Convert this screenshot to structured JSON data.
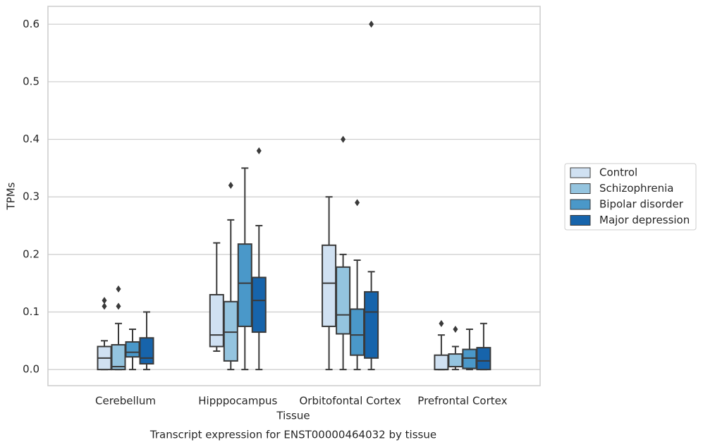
{
  "chart_data": {
    "type": "box",
    "title": "Transcript expression for ENST00000464032 by tissue",
    "x_label": "Tissue",
    "y_label": "TPMs",
    "categories": [
      "Cerebellum",
      "Hipppocampus",
      "Orbitofontal Cortex",
      "Prefrontal Cortex"
    ],
    "ylim": [
      -0.028,
      0.631
    ],
    "yticks": [
      {
        "value": 0,
        "label": "0.0"
      },
      0.1,
      0.2,
      0.3,
      0.4,
      0.5,
      0.6
    ],
    "grid": true,
    "legend": "right",
    "series": [
      {
        "name": "Control",
        "color": "#d0e1f2",
        "stats": [
          {
            "whislo": 0,
            "q1": 0,
            "med": 0.02,
            "q3": 0.04,
            "whishi": 0.05,
            "fliers": [
              0.12,
              0.11
            ]
          },
          {
            "whislo": 0.032,
            "q1": 0.04,
            "med": 0.06,
            "q3": 0.13,
            "whishi": 0.22
          },
          {
            "whislo": 0,
            "q1": 0.075,
            "med": 0.15,
            "q3": 0.216,
            "whishi": 0.3
          },
          {
            "whislo": 0,
            "q1": 0,
            "med": 0,
            "q3": 0.025,
            "whishi": 0.06,
            "fliers": [
              0.08
            ]
          }
        ]
      },
      {
        "name": "Schizophrenia",
        "color": "#94c4df",
        "stats": [
          {
            "whislo": 0,
            "q1": 0,
            "med": 0.005,
            "q3": 0.043,
            "whishi": 0.08,
            "fliers": [
              0.14,
              0.11
            ]
          },
          {
            "whislo": 0,
            "q1": 0.015,
            "med": 0.065,
            "q3": 0.118,
            "whishi": 0.26,
            "fliers": [
              0.32
            ]
          },
          {
            "whislo": 0,
            "q1": 0.062,
            "med": 0.095,
            "q3": 0.178,
            "whishi": 0.2,
            "fliers": [
              0.4
            ]
          },
          {
            "whislo": 0,
            "q1": 0.005,
            "med": 0.005,
            "q3": 0.027,
            "whishi": 0.04,
            "fliers": [
              0.07
            ]
          }
        ]
      },
      {
        "name": "Bipolar disorder",
        "color": "#4a98c9",
        "stats": [
          {
            "whislo": 0,
            "q1": 0.022,
            "med": 0.03,
            "q3": 0.048,
            "whishi": 0.07
          },
          {
            "whislo": 0,
            "q1": 0.075,
            "med": 0.15,
            "q3": 0.218,
            "whishi": 0.35
          },
          {
            "whislo": 0,
            "q1": 0.025,
            "med": 0.06,
            "q3": 0.105,
            "whishi": 0.19,
            "fliers": [
              0.29
            ]
          },
          {
            "whislo": 0,
            "q1": 0.002,
            "med": 0.02,
            "q3": 0.035,
            "whishi": 0.07
          }
        ]
      },
      {
        "name": "Major depression",
        "color": "#1764ab",
        "stats": [
          {
            "whislo": 0,
            "q1": 0.01,
            "med": 0.02,
            "q3": 0.055,
            "whishi": 0.1
          },
          {
            "whislo": 0,
            "q1": 0.065,
            "med": 0.12,
            "q3": 0.16,
            "whishi": 0.25,
            "fliers": [
              0.38
            ]
          },
          {
            "whislo": 0,
            "q1": 0.02,
            "med": 0.1,
            "q3": 0.135,
            "whishi": 0.17,
            "fliers": [
              0.6
            ]
          },
          {
            "whislo": 0,
            "q1": 0,
            "med": 0.015,
            "q3": 0.038,
            "whishi": 0.08
          }
        ]
      }
    ]
  }
}
